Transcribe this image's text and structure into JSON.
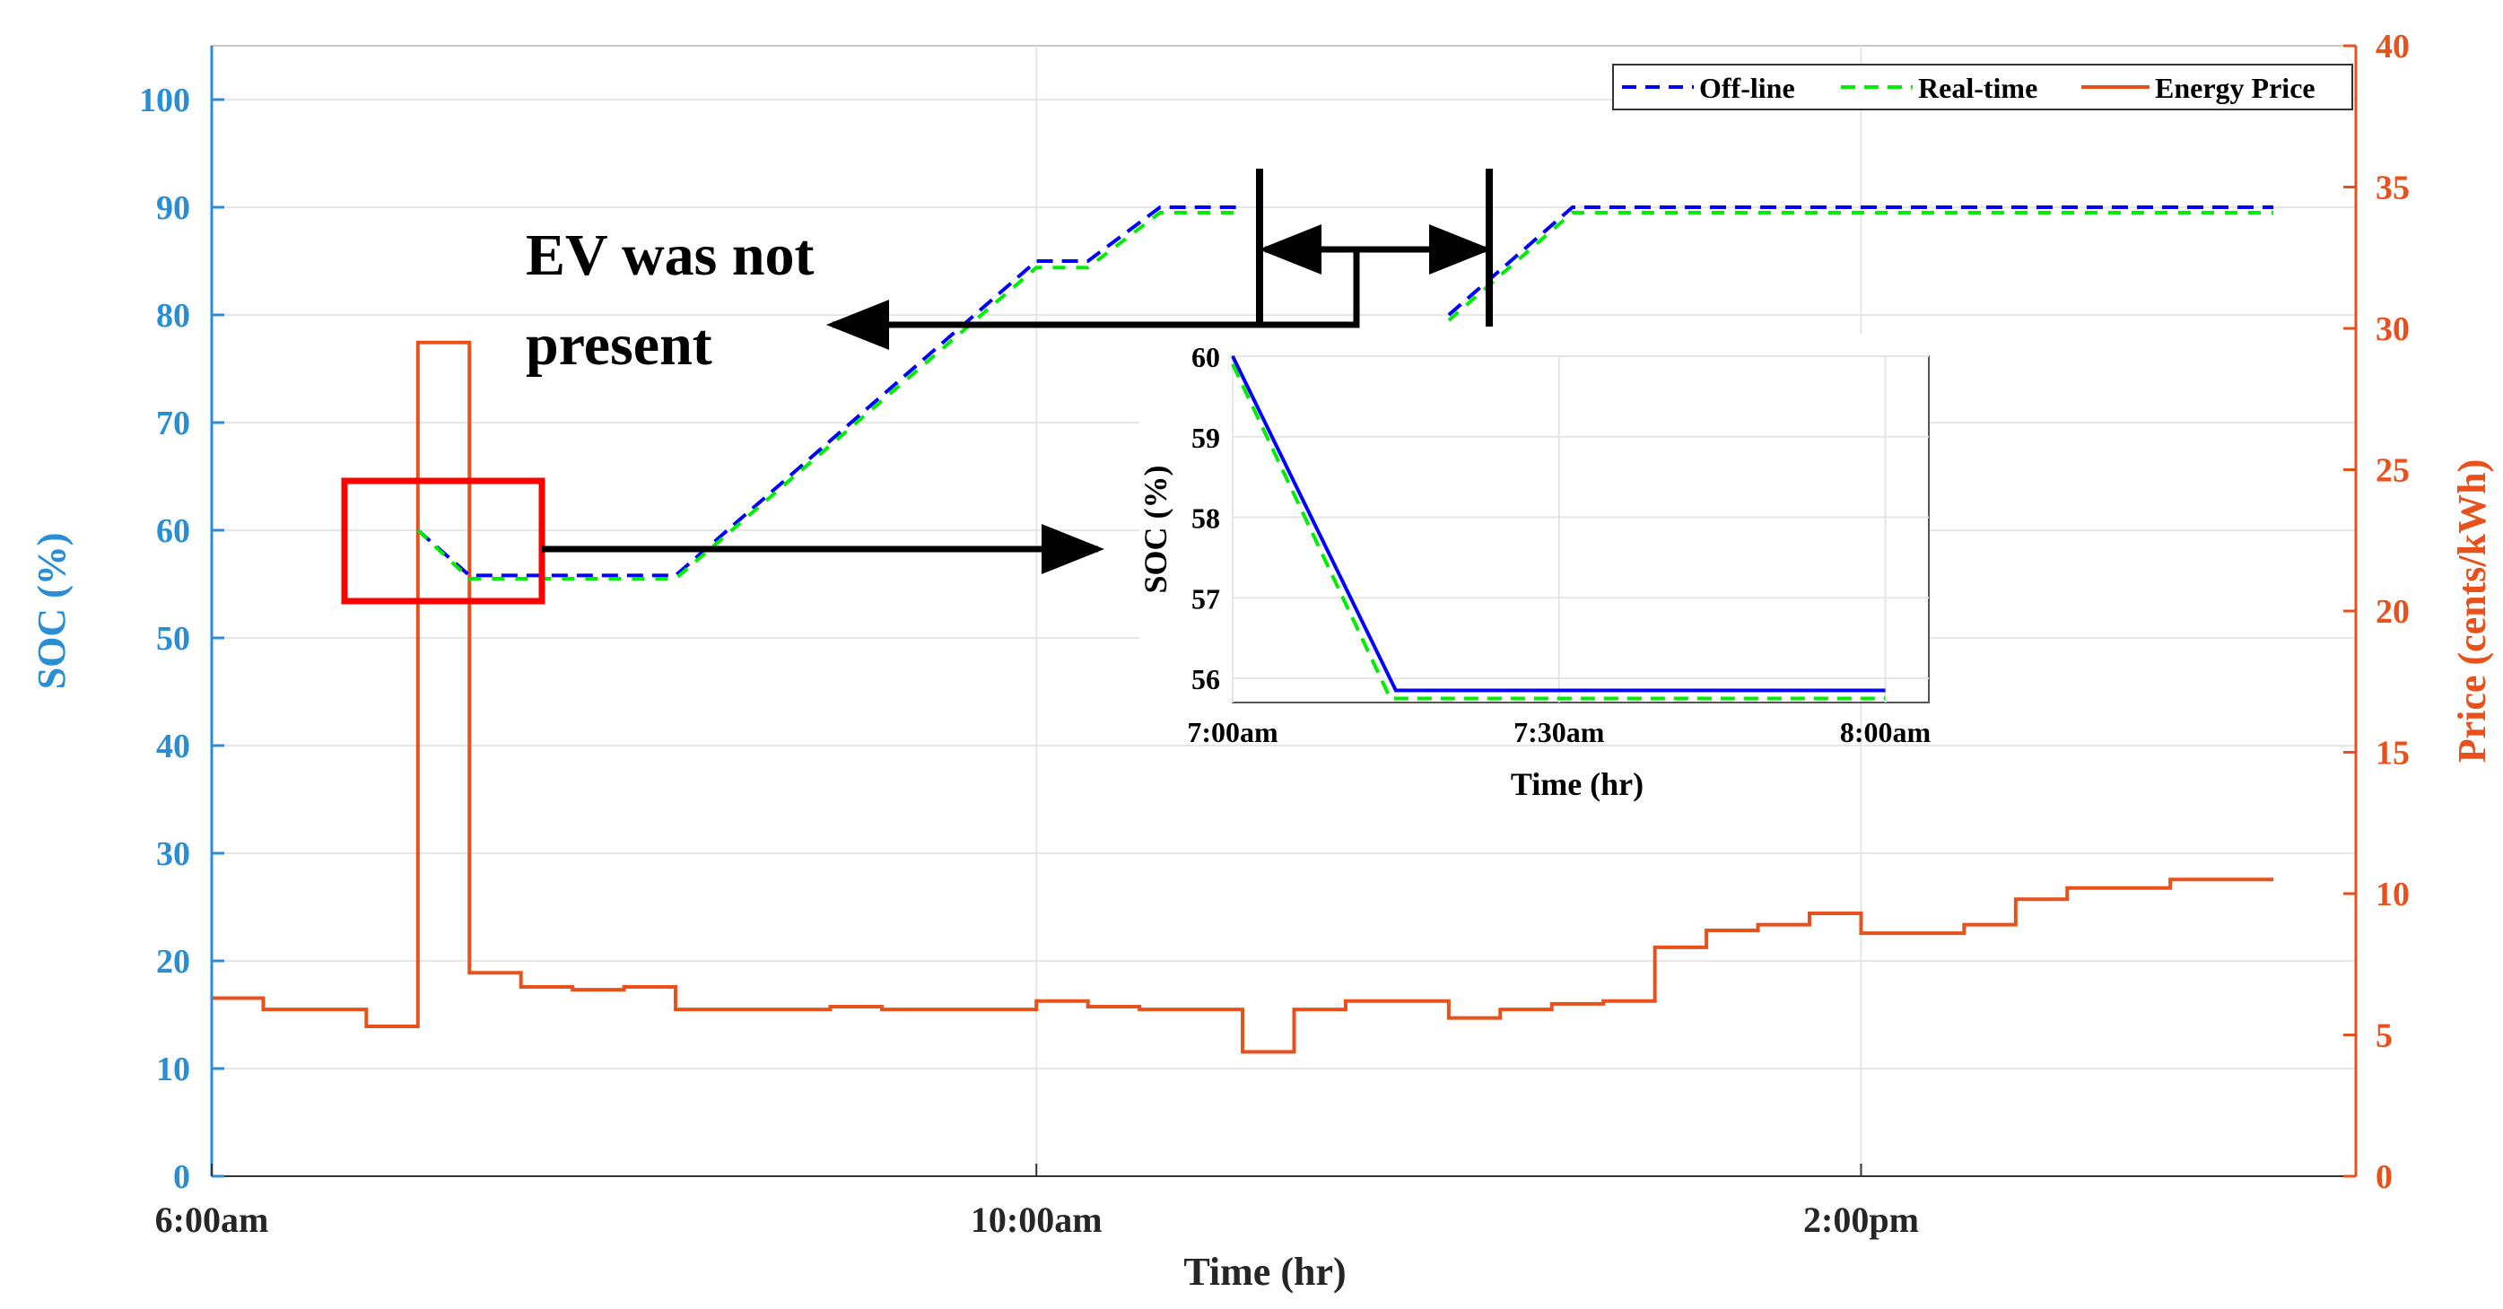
{
  "chart_data": [
    {
      "type": "line",
      "xlabel": "Time (hr)",
      "ylabel_left": "SOC (%)",
      "ylabel_right": "Price (cents/kWh)",
      "x_ticks": [
        "6:00am",
        "10:00am",
        "2:00pm"
      ],
      "x_unit": "hour of day",
      "x_tick_values": [
        6,
        10,
        14
      ],
      "xlim": [
        6,
        16.4
      ],
      "ylim_left": [
        0,
        105
      ],
      "ylim_right": [
        0,
        40
      ],
      "y_ticks_left": [
        "0",
        "10",
        "20",
        "30",
        "40",
        "50",
        "60",
        "70",
        "80",
        "90",
        "100"
      ],
      "y_ticks_right": [
        "0",
        "5",
        "10",
        "15",
        "20",
        "25",
        "30",
        "35",
        "40"
      ],
      "grid": true,
      "legend_position": "top-right",
      "series": [
        {
          "name": "Off-line",
          "axis": "left",
          "style": "dashed",
          "color": "#0000ff",
          "segments": [
            [
              [
                7.0,
                60
              ],
              [
                7.25,
                55.8
              ],
              [
                8.25,
                55.8
              ],
              [
                10.0,
                85
              ],
              [
                10.25,
                85
              ],
              [
                10.6,
                90
              ],
              [
                11.0,
                90
              ]
            ],
            [
              [
                12.0,
                80
              ],
              [
                12.6,
                90
              ],
              [
                16.0,
                90
              ]
            ]
          ]
        },
        {
          "name": "Real-time",
          "axis": "left",
          "style": "dashed",
          "color": "#00ee00",
          "segments": [
            [
              [
                7.0,
                60
              ],
              [
                7.25,
                55.5
              ],
              [
                8.25,
                55.5
              ],
              [
                10.0,
                84.4
              ],
              [
                10.25,
                84.4
              ],
              [
                10.6,
                89.5
              ],
              [
                11.0,
                89.5
              ]
            ],
            [
              [
                12.0,
                79.5
              ],
              [
                12.6,
                89.5
              ],
              [
                16.0,
                89.5
              ]
            ]
          ]
        },
        {
          "name": "Energy Price",
          "axis": "right",
          "style": "solid",
          "color": "#e8501c",
          "points": [
            [
              6.0,
              6.3
            ],
            [
              6.25,
              6.3
            ],
            [
              6.25,
              5.9
            ],
            [
              6.75,
              5.9
            ],
            [
              6.75,
              5.3
            ],
            [
              7.0,
              5.3
            ],
            [
              7.0,
              29.5
            ],
            [
              7.25,
              29.5
            ],
            [
              7.25,
              7.2
            ],
            [
              7.5,
              7.2
            ],
            [
              7.5,
              6.7
            ],
            [
              7.75,
              6.7
            ],
            [
              7.75,
              6.6
            ],
            [
              8.0,
              6.6
            ],
            [
              8.0,
              6.7
            ],
            [
              8.25,
              6.7
            ],
            [
              8.25,
              5.9
            ],
            [
              9.0,
              5.9
            ],
            [
              9.0,
              6.0
            ],
            [
              9.25,
              6.0
            ],
            [
              9.25,
              5.9
            ],
            [
              10.0,
              5.9
            ],
            [
              10.0,
              6.2
            ],
            [
              10.25,
              6.2
            ],
            [
              10.25,
              6.0
            ],
            [
              10.5,
              6.0
            ],
            [
              10.5,
              5.9
            ],
            [
              11.0,
              5.9
            ],
            [
              11.0,
              4.4
            ],
            [
              11.25,
              4.4
            ],
            [
              11.25,
              5.9
            ],
            [
              11.5,
              5.9
            ],
            [
              11.5,
              6.2
            ],
            [
              12.0,
              6.2
            ],
            [
              12.0,
              5.6
            ],
            [
              12.25,
              5.6
            ],
            [
              12.25,
              5.9
            ],
            [
              12.5,
              5.9
            ],
            [
              12.5,
              6.1
            ],
            [
              12.75,
              6.1
            ],
            [
              12.75,
              6.2
            ],
            [
              13.0,
              6.2
            ],
            [
              13.0,
              8.1
            ],
            [
              13.25,
              8.1
            ],
            [
              13.25,
              8.7
            ],
            [
              13.5,
              8.7
            ],
            [
              13.5,
              8.9
            ],
            [
              13.75,
              8.9
            ],
            [
              13.75,
              9.3
            ],
            [
              14.0,
              9.3
            ],
            [
              14.0,
              8.6
            ],
            [
              14.5,
              8.6
            ],
            [
              14.5,
              8.9
            ],
            [
              14.75,
              8.9
            ],
            [
              14.75,
              9.8
            ],
            [
              15.0,
              9.8
            ],
            [
              15.0,
              10.2
            ],
            [
              15.5,
              10.2
            ],
            [
              15.5,
              10.5
            ],
            [
              16.0,
              10.5
            ]
          ]
        }
      ],
      "annotations": {
        "text": "EV was not present"
      }
    },
    {
      "type": "line",
      "role": "inset",
      "xlabel": "Time (hr)",
      "ylabel": "SOC (%)",
      "x_ticks": [
        "7:00am",
        "7:30am",
        "8:00am"
      ],
      "x_unit": "minutes after 7:00am",
      "x_tick_values": [
        0,
        30,
        60
      ],
      "xlim": [
        0,
        64
      ],
      "ylim": [
        55.7,
        60
      ],
      "y_ticks": [
        "56",
        "57",
        "58",
        "59",
        "60"
      ],
      "grid": true,
      "series": [
        {
          "name": "Off-line",
          "color": "#0000ff",
          "style": "solid",
          "points": [
            [
              0,
              60
            ],
            [
              15,
              55.85
            ],
            [
              60,
              55.85
            ]
          ]
        },
        {
          "name": "Real-time",
          "color": "#00ee00",
          "style": "dashed",
          "points": [
            [
              0,
              59.9
            ],
            [
              14.5,
              55.75
            ],
            [
              60,
              55.75
            ]
          ]
        }
      ]
    }
  ]
}
